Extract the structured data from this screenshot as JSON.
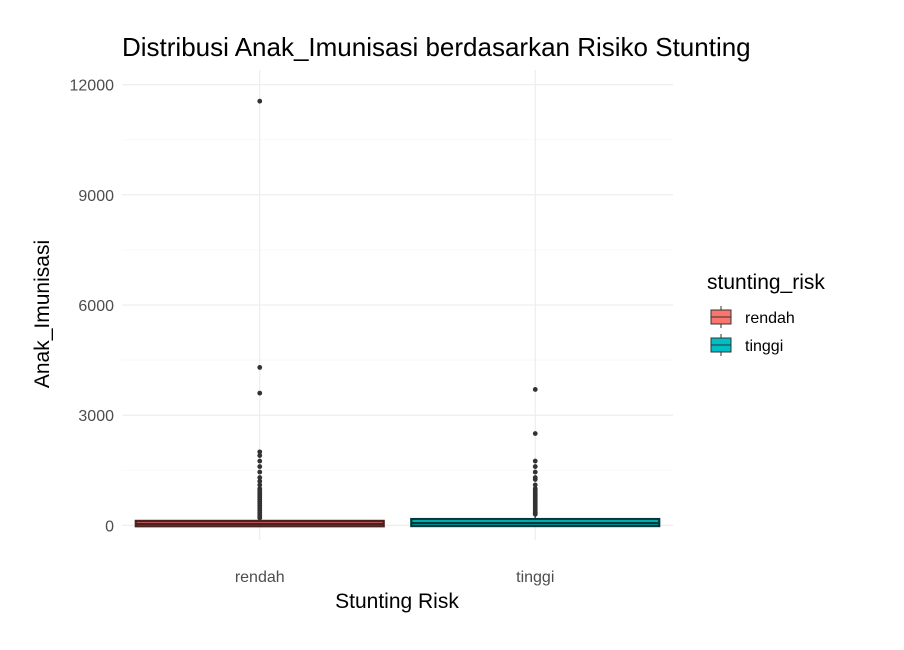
{
  "chart_data": {
    "type": "boxplot",
    "title": "Distribusi Anak_Imunisasi berdasarkan Risiko Stunting",
    "xlabel": "Stunting Risk",
    "ylabel": "Anak_Imunisasi",
    "ylim": [
      -400,
      12400
    ],
    "yticks": [
      0,
      3000,
      6000,
      9000,
      12000
    ],
    "ytick_labels": [
      "0",
      "3000",
      "6000",
      "9000",
      "12000"
    ],
    "categories": [
      "rendah",
      "tinggi"
    ],
    "grid": true,
    "legend": {
      "title": "stunting_risk",
      "position": "right",
      "items": [
        {
          "label": "rendah",
          "color": "#F8766D"
        },
        {
          "label": "tinggi",
          "color": "#00BFC4"
        }
      ]
    },
    "series": [
      {
        "name": "rendah",
        "color": "#F8766D",
        "box": {
          "min": 0,
          "q1": 15,
          "median": 40,
          "q3": 80,
          "max": 160
        },
        "outliers": [
          11550,
          4300,
          3600,
          2000,
          1900,
          1750,
          1600,
          1450,
          1300,
          1200,
          1100,
          1000,
          950,
          900,
          850,
          800,
          750,
          700,
          650,
          600,
          550,
          500,
          450,
          400,
          350,
          300,
          250,
          200
        ]
      },
      {
        "name": "tinggi",
        "color": "#00BFC4",
        "box": {
          "min": 0,
          "q1": 20,
          "median": 60,
          "q3": 130,
          "max": 280
        },
        "outliers": [
          3700,
          2500,
          1750,
          1600,
          1450,
          1300,
          1250,
          1100,
          1000,
          950,
          900,
          850,
          800,
          750,
          700,
          650,
          600,
          550,
          500,
          450,
          400,
          350,
          320,
          300
        ]
      }
    ]
  }
}
